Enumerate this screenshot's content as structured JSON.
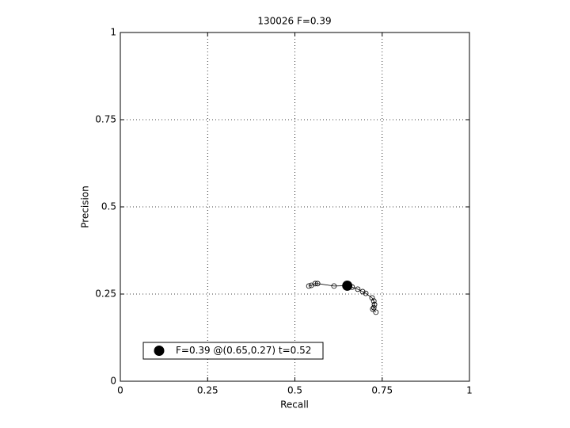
{
  "chart_data": {
    "type": "line",
    "title": "130026 F=0.39",
    "xlabel": "Recall",
    "ylabel": "Precision",
    "xlim": [
      0,
      1
    ],
    "ylim": [
      0,
      1
    ],
    "xticks": [
      0,
      0.25,
      0.5,
      0.75,
      1
    ],
    "yticks": [
      0,
      0.25,
      0.5,
      0.75,
      1
    ],
    "grid": true,
    "legend": "lower left",
    "series": [
      {
        "color": "#000000",
        "marker": "open",
        "x": [
          0.54,
          0.547,
          0.558,
          0.565,
          0.612,
          0.65,
          0.664,
          0.68,
          0.694,
          0.703,
          0.721,
          0.726,
          0.728,
          0.726,
          0.723,
          0.732
        ],
        "values": [
          0.273,
          0.275,
          0.28,
          0.28,
          0.273,
          0.274,
          0.27,
          0.264,
          0.257,
          0.252,
          0.239,
          0.23,
          0.22,
          0.211,
          0.207,
          0.198
        ]
      },
      {
        "name": "F=0.39 @(0.65,0.27) t=0.52",
        "color": "#000000",
        "marker": "filled",
        "x": [
          0.65
        ],
        "values": [
          0.274
        ]
      }
    ]
  }
}
